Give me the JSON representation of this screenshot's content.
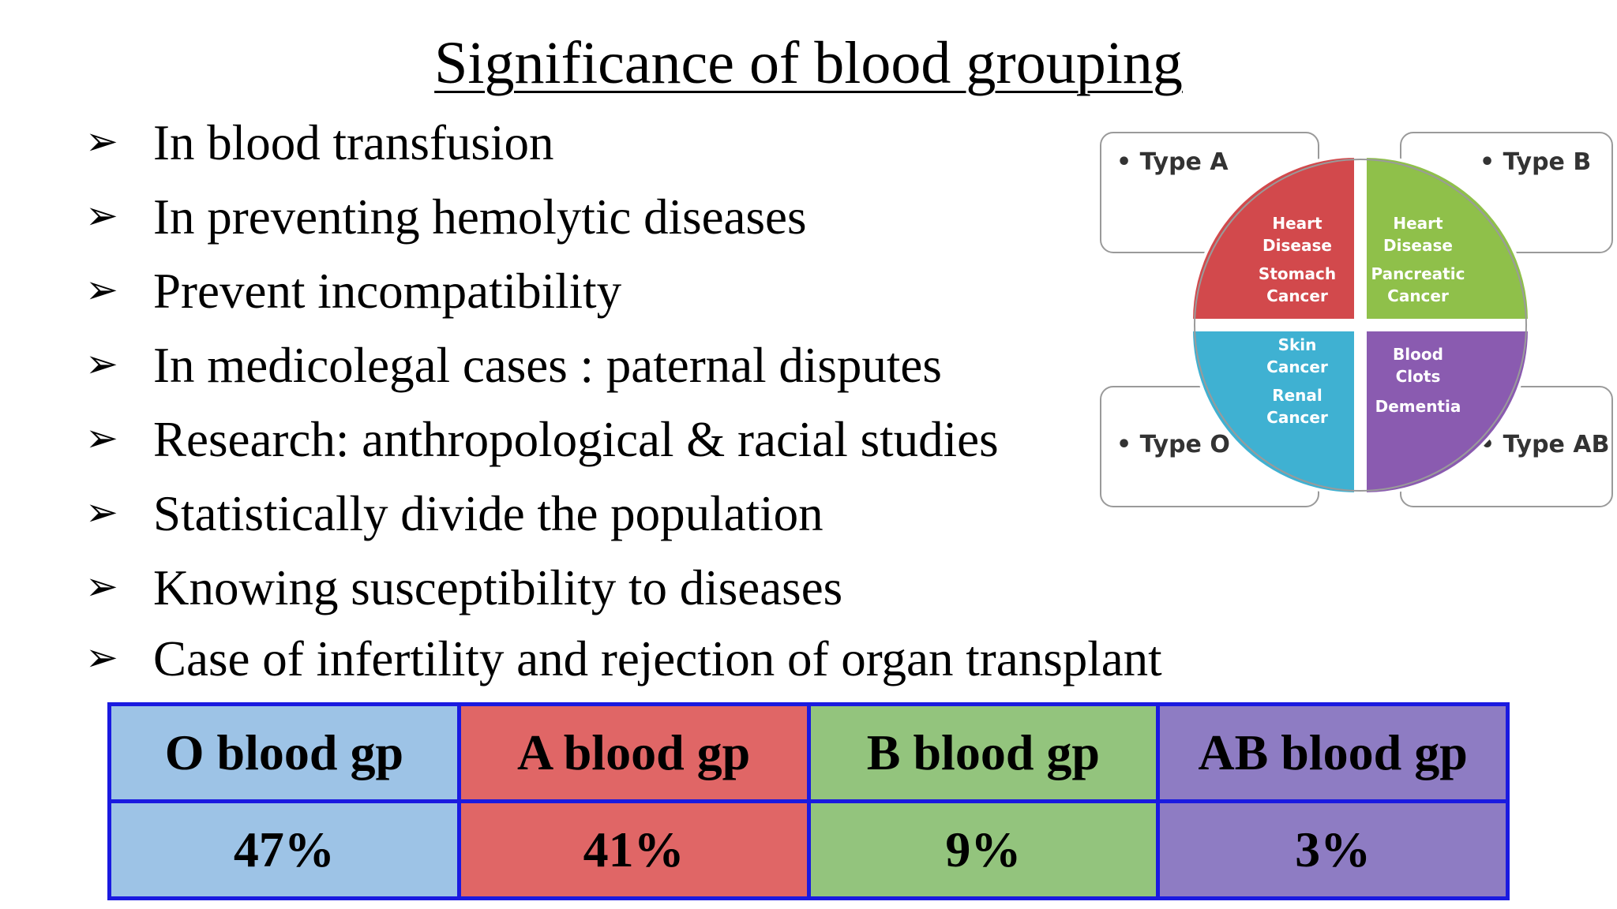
{
  "title": "Significance of blood grouping",
  "bullet_symbol": "➢",
  "bullets": [
    "In blood transfusion",
    "In preventing hemolytic diseases",
    "Prevent incompatibility",
    "In medicolegal cases :  paternal disputes",
    "Research: anthropological & racial studies",
    "Statistically divide the population",
    "Knowing susceptibility to diseases",
    "Case  of infertility and rejection of organ transplant"
  ],
  "diagram": {
    "type_a": "• Type A",
    "type_b": "• Type B",
    "type_o": "• Type O",
    "type_ab": "• Type AB",
    "quadrants": {
      "a": [
        "Heart",
        "Disease",
        "Stomach",
        "Cancer"
      ],
      "b": [
        "Heart",
        "Disease",
        "Pancreatic",
        "Cancer"
      ],
      "o": [
        "Skin",
        "Cancer",
        "Renal",
        "Cancer"
      ],
      "ab": [
        "Blood",
        "Clots",
        "Dementia"
      ]
    },
    "colors": {
      "a": "#d2494c",
      "b": "#8fc04a",
      "o": "#3fb1d2",
      "ab": "#8a5bb0"
    }
  },
  "table": {
    "headers": [
      "O blood gp",
      "A blood  gp",
      "B blood gp",
      "AB blood gp"
    ],
    "values": [
      "47%",
      "41%",
      "9%",
      "3%"
    ],
    "colors": [
      "#9dc3e6",
      "#e06666",
      "#93c47d",
      "#8e7cc3"
    ]
  }
}
